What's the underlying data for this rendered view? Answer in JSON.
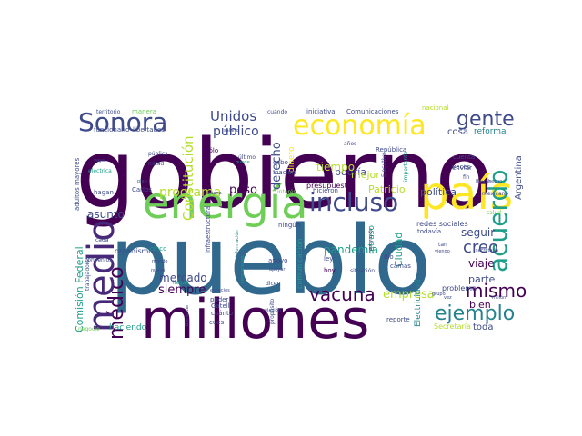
{
  "palette": {
    "dark_purple": "#440154",
    "purple": "#482878",
    "indigo": "#3e4a89",
    "blue": "#31688e",
    "teal": "#26828e",
    "green_teal": "#1f9e89",
    "green": "#35b779",
    "lime": "#6ece58",
    "yellow_green": "#b5de2b",
    "yellow": "#fde725"
  },
  "words": [
    {
      "text": "gobierno"
    },
    {
      "text": "pueblo"
    },
    {
      "text": "millones"
    },
    {
      "text": "energía"
    },
    {
      "text": "país"
    },
    {
      "text": "economía"
    },
    {
      "text": "Sonora"
    },
    {
      "text": "incluso"
    },
    {
      "text": "médico"
    },
    {
      "text": "medio"
    },
    {
      "text": "acuerdo"
    },
    {
      "text": "vacuna"
    },
    {
      "text": "gente"
    },
    {
      "text": "ejemplo"
    },
    {
      "text": "mismo"
    },
    {
      "text": "creo"
    },
    {
      "text": "Unidos"
    },
    {
      "text": "público"
    },
    {
      "text": "Constitución"
    },
    {
      "text": "programa"
    },
    {
      "text": "derecho"
    },
    {
      "text": "peso"
    },
    {
      "text": "mercado"
    },
    {
      "text": "asunto"
    },
    {
      "text": "siempre"
    },
    {
      "text": "empresa"
    },
    {
      "text": "pandemia"
    },
    {
      "text": "podría"
    },
    {
      "text": "mejor"
    },
    {
      "text": "tiempo"
    },
    {
      "text": "seguir"
    },
    {
      "text": "viaje"
    },
    {
      "text": "parte"
    },
    {
      "text": "bien"
    },
    {
      "text": "toda"
    },
    {
      "text": "Ciudad"
    },
    {
      "text": "Patricio"
    },
    {
      "text": "política"
    },
    {
      "text": "Comisión Federal"
    },
    {
      "text": "cosa"
    },
    {
      "text": "reforma"
    },
    {
      "text": "Argentina"
    },
    {
      "text": "haciendo"
    },
    {
      "text": "organismo"
    },
    {
      "text": "dinero"
    },
    {
      "text": "presupuesto"
    },
    {
      "text": "comunicación"
    },
    {
      "text": "Electricidad"
    },
    {
      "text": "redes sociales"
    },
    {
      "text": "problema"
    },
    {
      "text": "retraso"
    },
    {
      "text": "nacional"
    },
    {
      "text": "iniciativa"
    },
    {
      "text": "Comunicaciones"
    },
    {
      "text": "cuándo"
    },
    {
      "text": "territorio"
    },
    {
      "text": "manera"
    },
    {
      "text": "funcionario"
    },
    {
      "text": "libertades"
    },
    {
      "text": "salario"
    },
    {
      "text": "años"
    },
    {
      "text": "República"
    },
    {
      "text": "Ejecutivo"
    },
    {
      "text": "importante"
    },
    {
      "text": "llevar"
    },
    {
      "text": "fin"
    },
    {
      "text": "adultos mayores"
    },
    {
      "text": "pública"
    },
    {
      "text": "mitad"
    },
    {
      "text": "sólo"
    },
    {
      "text": "último"
    },
    {
      "text": "nación"
    },
    {
      "text": "cabo"
    },
    {
      "text": "hicieron"
    },
    {
      "text": "interés"
    },
    {
      "text": "Carlos"
    },
    {
      "text": "hagan"
    },
    {
      "text": "buena"
    },
    {
      "text": "cuenta"
    },
    {
      "text": "enviar"
    },
    {
      "text": "veces"
    },
    {
      "text": "mexicano"
    },
    {
      "text": "salud"
    },
    {
      "text": "todavía"
    },
    {
      "text": "ningún"
    },
    {
      "text": "infraestructura"
    },
    {
      "text": "información"
    },
    {
      "text": "concesiones"
    },
    {
      "text": "cinco"
    },
    {
      "text": "mundo"
    },
    {
      "text": "nuevo"
    },
    {
      "text": "apoyo"
    },
    {
      "text": "apoyar"
    },
    {
      "text": "ley"
    },
    {
      "text": "hoy"
    },
    {
      "text": "dicen"
    },
    {
      "text": "situación"
    },
    {
      "text": "camas"
    },
    {
      "text": "dio"
    },
    {
      "text": "tan"
    },
    {
      "text": "viendo"
    },
    {
      "text": "llegar"
    },
    {
      "text": "especies"
    },
    {
      "text": "poder"
    },
    {
      "text": "Gatell"
    },
    {
      "text": "cuánto"
    },
    {
      "text": "cues"
    },
    {
      "text": "relación"
    },
    {
      "text": "propósito"
    },
    {
      "text": "trabajadores"
    },
    {
      "text": "Bienestar"
    },
    {
      "text": "negocio"
    },
    {
      "text": "convenios"
    },
    {
      "text": "cada"
    },
    {
      "text": "reporte"
    },
    {
      "text": "Secretaría"
    },
    {
      "text": "secretaria"
    },
    {
      "text": "millón"
    },
    {
      "text": "grupo"
    },
    {
      "text": "vez"
    },
    {
      "text": "apoyando"
    },
    {
      "text": "eléctrica"
    },
    {
      "text": "vaya"
    },
    {
      "text": "plan"
    },
    {
      "text": "hecho"
    },
    {
      "text": "puede"
    }
  ]
}
